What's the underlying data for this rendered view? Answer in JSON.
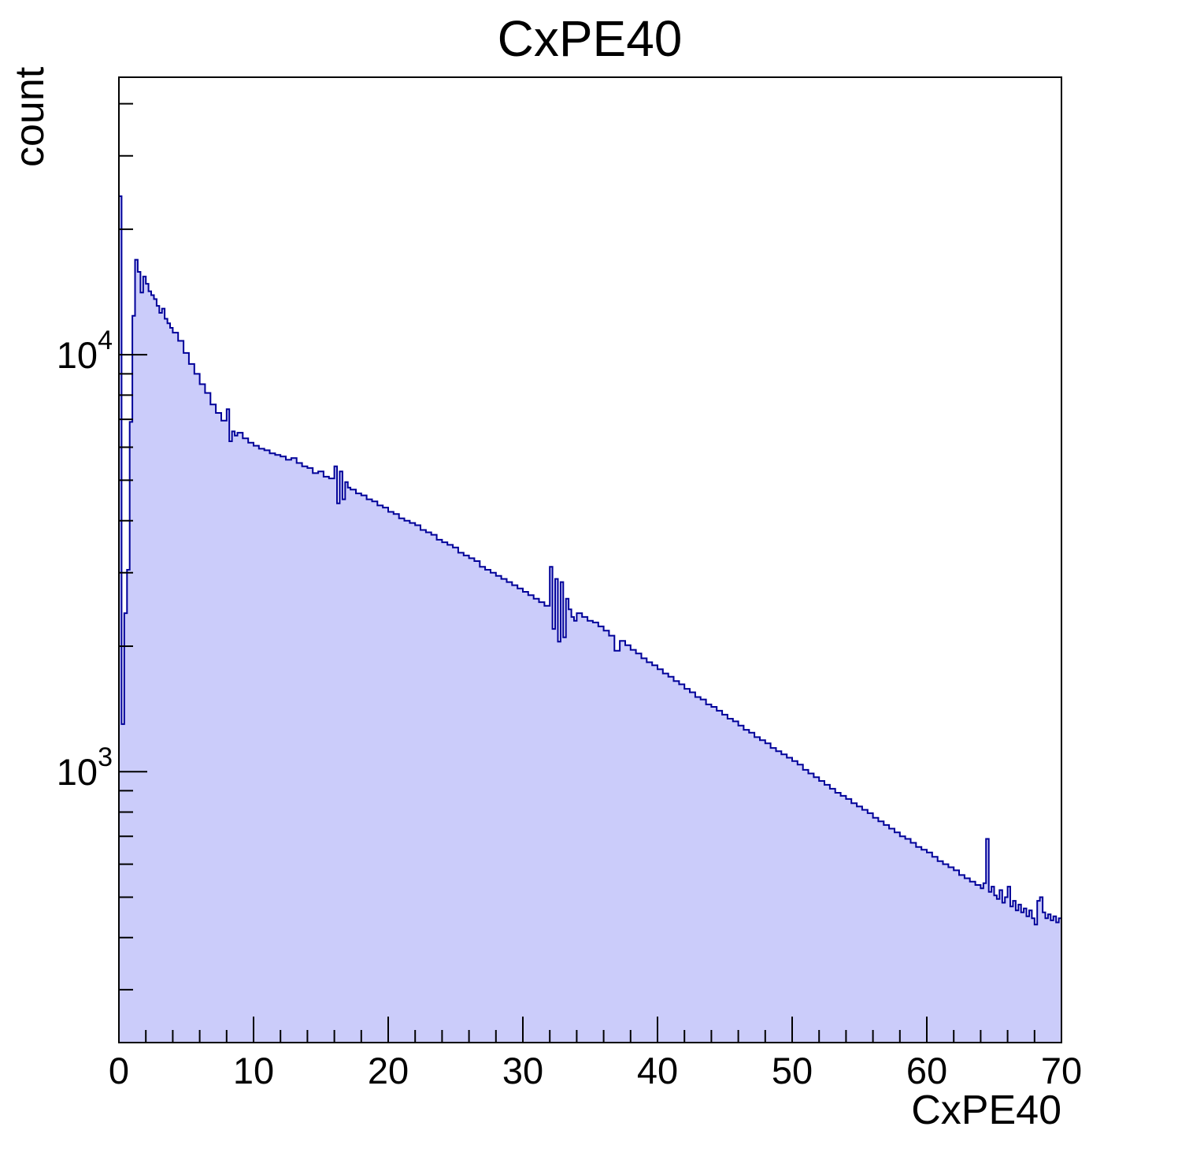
{
  "title": "CxPE40",
  "colors": {
    "background": "#ffffff",
    "hist_fill": "#cbccfa",
    "hist_line": "#000099",
    "axis": "#000000",
    "text": "#000000"
  },
  "chart_data": {
    "type": "bar",
    "subtype": "histogram-log-y",
    "title": "CxPE40",
    "xlabel": "CxPE40",
    "ylabel": "count",
    "grid": false,
    "legend_position": "none",
    "x_axis": {
      "min": 0,
      "max": 70,
      "major_ticks": [
        0,
        10,
        20,
        30,
        40,
        50,
        60,
        70
      ],
      "major_tick_labels": [
        "0",
        "10",
        "20",
        "30",
        "40",
        "50",
        "60",
        "70"
      ],
      "minor_tick_step": 2
    },
    "y_axis": {
      "scale": "log",
      "min": 224,
      "max": 46300,
      "major_ticks": [
        1000,
        10000
      ],
      "major_tick_labels": [
        {
          "base": "10",
          "exp": "3"
        },
        {
          "base": "10",
          "exp": "4"
        }
      ],
      "minor_tick_multipliers": [
        2,
        3,
        4,
        5,
        6,
        7,
        8,
        9
      ],
      "minor_tick_decades": [
        100,
        1000,
        10000
      ]
    },
    "bin_note": "bins are [x_left, count]; each bin extends to the next x_left, last bin ends at x=70",
    "bins": [
      [
        0.0,
        24000
      ],
      [
        0.2,
        1300
      ],
      [
        0.4,
        2400
      ],
      [
        0.6,
        3050
      ],
      [
        0.8,
        6900
      ],
      [
        1.0,
        12400
      ],
      [
        1.2,
        16900
      ],
      [
        1.4,
        15800
      ],
      [
        1.6,
        14100
      ],
      [
        1.8,
        15400
      ],
      [
        2.0,
        14800
      ],
      [
        2.2,
        14200
      ],
      [
        2.4,
        13900
      ],
      [
        2.6,
        13600
      ],
      [
        2.8,
        13100
      ],
      [
        3.0,
        12600
      ],
      [
        3.2,
        12900
      ],
      [
        3.4,
        12200
      ],
      [
        3.6,
        11900
      ],
      [
        3.8,
        11600
      ],
      [
        4.0,
        11300
      ],
      [
        4.4,
        10800
      ],
      [
        4.8,
        10100
      ],
      [
        5.2,
        9500
      ],
      [
        5.6,
        9000
      ],
      [
        6.0,
        8500
      ],
      [
        6.4,
        8100
      ],
      [
        6.8,
        7600
      ],
      [
        7.2,
        7250
      ],
      [
        7.6,
        6950
      ],
      [
        8.0,
        7400
      ],
      [
        8.2,
        6200
      ],
      [
        8.4,
        6550
      ],
      [
        8.6,
        6400
      ],
      [
        8.8,
        6500
      ],
      [
        9.2,
        6300
      ],
      [
        9.6,
        6150
      ],
      [
        10.0,
        6050
      ],
      [
        10.4,
        5950
      ],
      [
        10.8,
        5900
      ],
      [
        11.2,
        5800
      ],
      [
        11.6,
        5750
      ],
      [
        12.0,
        5700
      ],
      [
        12.4,
        5600
      ],
      [
        12.8,
        5650
      ],
      [
        13.2,
        5500
      ],
      [
        13.6,
        5400
      ],
      [
        14.0,
        5350
      ],
      [
        14.4,
        5200
      ],
      [
        14.8,
        5250
      ],
      [
        15.2,
        5100
      ],
      [
        15.6,
        5050
      ],
      [
        16.0,
        5400
      ],
      [
        16.2,
        4400
      ],
      [
        16.4,
        5250
      ],
      [
        16.6,
        4500
      ],
      [
        16.8,
        4950
      ],
      [
        17.0,
        4800
      ],
      [
        17.2,
        4750
      ],
      [
        17.6,
        4650
      ],
      [
        18.0,
        4600
      ],
      [
        18.4,
        4500
      ],
      [
        18.8,
        4450
      ],
      [
        19.2,
        4350
      ],
      [
        19.6,
        4300
      ],
      [
        20.0,
        4200
      ],
      [
        20.4,
        4150
      ],
      [
        20.8,
        4050
      ],
      [
        21.2,
        4000
      ],
      [
        21.6,
        3950
      ],
      [
        22.0,
        3900
      ],
      [
        22.4,
        3800
      ],
      [
        22.8,
        3750
      ],
      [
        23.2,
        3700
      ],
      [
        23.6,
        3600
      ],
      [
        24.0,
        3550
      ],
      [
        24.4,
        3500
      ],
      [
        24.8,
        3450
      ],
      [
        25.2,
        3350
      ],
      [
        25.6,
        3300
      ],
      [
        26.0,
        3250
      ],
      [
        26.4,
        3200
      ],
      [
        26.8,
        3100
      ],
      [
        27.2,
        3050
      ],
      [
        27.6,
        3000
      ],
      [
        28.0,
        2950
      ],
      [
        28.4,
        2900
      ],
      [
        28.8,
        2850
      ],
      [
        29.2,
        2800
      ],
      [
        29.6,
        2750
      ],
      [
        30.0,
        2700
      ],
      [
        30.4,
        2650
      ],
      [
        30.8,
        2600
      ],
      [
        31.2,
        2550
      ],
      [
        31.6,
        2500
      ],
      [
        32.0,
        3100
      ],
      [
        32.2,
        2200
      ],
      [
        32.4,
        2900
      ],
      [
        32.6,
        2050
      ],
      [
        32.8,
        2850
      ],
      [
        33.0,
        2100
      ],
      [
        33.2,
        2600
      ],
      [
        33.4,
        2450
      ],
      [
        33.6,
        2350
      ],
      [
        33.8,
        2300
      ],
      [
        34.0,
        2400
      ],
      [
        34.4,
        2350
      ],
      [
        34.8,
        2300
      ],
      [
        35.2,
        2280
      ],
      [
        35.6,
        2230
      ],
      [
        36.0,
        2180
      ],
      [
        36.4,
        2120
      ],
      [
        36.8,
        1950
      ],
      [
        37.2,
        2060
      ],
      [
        37.6,
        2010
      ],
      [
        38.0,
        1960
      ],
      [
        38.4,
        1920
      ],
      [
        38.8,
        1870
      ],
      [
        39.2,
        1830
      ],
      [
        39.6,
        1800
      ],
      [
        40.0,
        1760
      ],
      [
        40.4,
        1720
      ],
      [
        40.8,
        1690
      ],
      [
        41.2,
        1650
      ],
      [
        41.6,
        1620
      ],
      [
        42.0,
        1580
      ],
      [
        42.4,
        1550
      ],
      [
        42.8,
        1510
      ],
      [
        43.2,
        1490
      ],
      [
        43.6,
        1450
      ],
      [
        44.0,
        1430
      ],
      [
        44.4,
        1400
      ],
      [
        44.8,
        1370
      ],
      [
        45.2,
        1340
      ],
      [
        45.6,
        1320
      ],
      [
        46.0,
        1290
      ],
      [
        46.4,
        1260
      ],
      [
        46.8,
        1240
      ],
      [
        47.2,
        1210
      ],
      [
        47.6,
        1190
      ],
      [
        48.0,
        1170
      ],
      [
        48.4,
        1140
      ],
      [
        48.8,
        1120
      ],
      [
        49.2,
        1100
      ],
      [
        49.6,
        1080
      ],
      [
        50.0,
        1060
      ],
      [
        50.4,
        1040
      ],
      [
        50.8,
        1010
      ],
      [
        51.2,
        990
      ],
      [
        51.6,
        970
      ],
      [
        52.0,
        950
      ],
      [
        52.4,
        930
      ],
      [
        52.8,
        910
      ],
      [
        53.2,
        890
      ],
      [
        53.6,
        875
      ],
      [
        54.0,
        860
      ],
      [
        54.4,
        840
      ],
      [
        54.8,
        825
      ],
      [
        55.2,
        810
      ],
      [
        55.6,
        795
      ],
      [
        56.0,
        775
      ],
      [
        56.4,
        760
      ],
      [
        56.8,
        745
      ],
      [
        57.2,
        730
      ],
      [
        57.6,
        715
      ],
      [
        58.0,
        700
      ],
      [
        58.4,
        690
      ],
      [
        58.8,
        675
      ],
      [
        59.2,
        660
      ],
      [
        59.6,
        650
      ],
      [
        60.0,
        640
      ],
      [
        60.4,
        625
      ],
      [
        60.8,
        610
      ],
      [
        61.2,
        600
      ],
      [
        61.6,
        590
      ],
      [
        62.0,
        580
      ],
      [
        62.4,
        565
      ],
      [
        62.8,
        555
      ],
      [
        63.2,
        545
      ],
      [
        63.6,
        535
      ],
      [
        64.0,
        525
      ],
      [
        64.2,
        540
      ],
      [
        64.4,
        690
      ],
      [
        64.6,
        515
      ],
      [
        64.8,
        530
      ],
      [
        65.0,
        505
      ],
      [
        65.2,
        495
      ],
      [
        65.4,
        520
      ],
      [
        65.6,
        485
      ],
      [
        65.8,
        500
      ],
      [
        66.0,
        530
      ],
      [
        66.2,
        475
      ],
      [
        66.4,
        490
      ],
      [
        66.6,
        465
      ],
      [
        66.8,
        480
      ],
      [
        67.0,
        460
      ],
      [
        67.2,
        470
      ],
      [
        67.4,
        450
      ],
      [
        67.6,
        465
      ],
      [
        67.8,
        445
      ],
      [
        68.0,
        430
      ],
      [
        68.2,
        490
      ],
      [
        68.4,
        500
      ],
      [
        68.6,
        460
      ],
      [
        68.8,
        445
      ],
      [
        69.0,
        455
      ],
      [
        69.2,
        440
      ],
      [
        69.4,
        450
      ],
      [
        69.6,
        435
      ],
      [
        69.8,
        445
      ]
    ]
  }
}
